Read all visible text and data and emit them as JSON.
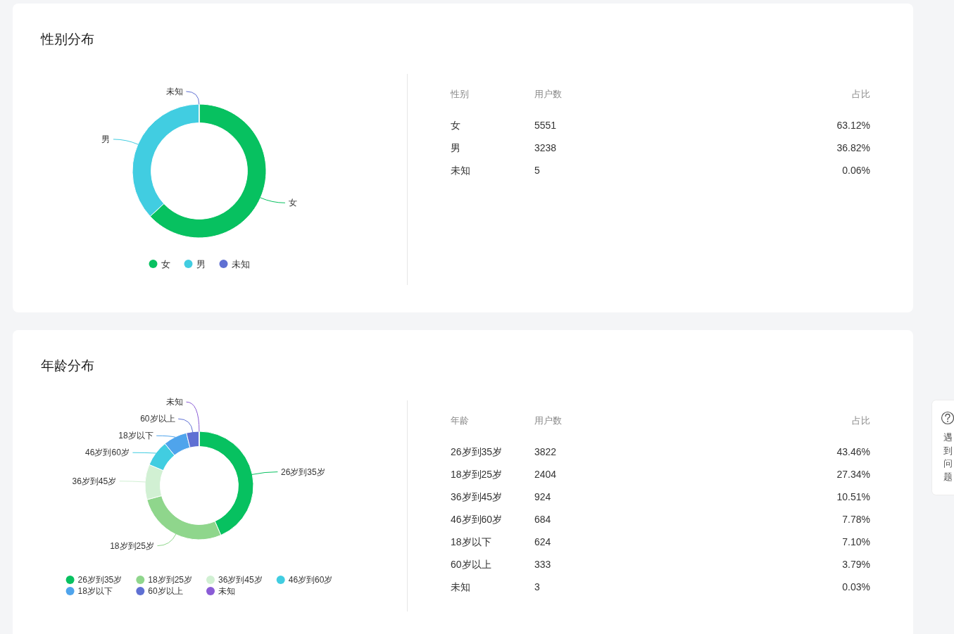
{
  "chart_data": [
    {
      "type": "donut",
      "title": "性别分布",
      "categories": [
        "女",
        "男",
        "未知"
      ],
      "values": [
        63.12,
        36.82,
        0.06
      ],
      "colors": [
        "#07c160",
        "#41cde1",
        "#5f70d3"
      ],
      "legend": "bottom"
    },
    {
      "type": "other",
      "annotations": [
        "性别",
        "用户数",
        "占比",
        "女",
        "5551",
        "63.12%",
        "男",
        "3238",
        "36.82%",
        "未知",
        "5",
        "0.06%"
      ]
    },
    {
      "type": "donut",
      "title": "年龄分布",
      "categories": [
        "26岁到35岁",
        "18岁到25岁",
        "36岁到45岁",
        "46岁到60岁",
        "18岁以下",
        "60岁以上",
        "未知"
      ],
      "values": [
        43.46,
        27.34,
        10.51,
        7.78,
        7.1,
        3.79,
        0.03
      ],
      "colors": [
        "#07c160",
        "#8fd68c",
        "#d1f0d3",
        "#41cde1",
        "#4fa4ec",
        "#5f70d3",
        "#8a5cd6"
      ],
      "legend": "bottom",
      "annotations": [
        "遇到问题"
      ]
    },
    {
      "type": "other",
      "annotations": [
        "年龄",
        "用户数",
        "占比",
        "26岁到35岁",
        "3822",
        "43.46%",
        "18岁到25岁",
        "2404",
        "27.34%",
        "36岁到45岁",
        "924",
        "10.51%",
        "46岁到60岁",
        "684",
        "7.78%",
        "18岁以下",
        "624",
        "7.10%",
        "60岁以上",
        "333",
        "3.79%",
        "未知",
        "3",
        "0.03%"
      ]
    }
  ]
}
